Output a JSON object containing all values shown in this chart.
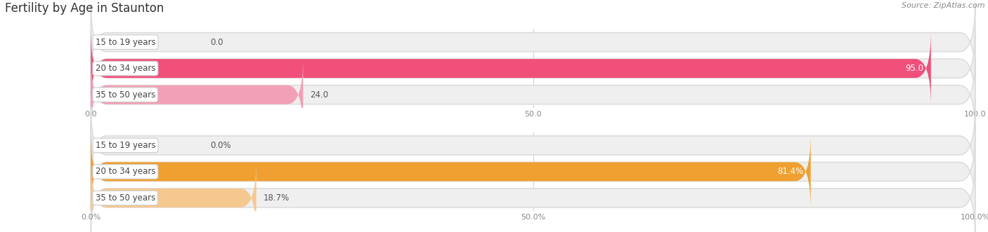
{
  "title": "Fertility by Age in Staunton",
  "source": "Source: ZipAtlas.com",
  "top_chart": {
    "categories": [
      "15 to 19 years",
      "20 to 34 years",
      "35 to 50 years"
    ],
    "values": [
      0.0,
      95.0,
      24.0
    ],
    "value_labels": [
      "0.0",
      "95.0",
      "24.0"
    ],
    "xlim": [
      0,
      100
    ],
    "xticks": [
      0.0,
      50.0,
      100.0
    ],
    "xtick_labels": [
      "0.0",
      "50.0",
      "100.0"
    ],
    "bar_colors": [
      "#f2a0b5",
      "#f0507a",
      "#f2a0b5"
    ],
    "bar_bg_color": "#efefef"
  },
  "bottom_chart": {
    "categories": [
      "15 to 19 years",
      "20 to 34 years",
      "35 to 50 years"
    ],
    "values": [
      0.0,
      81.4,
      18.7
    ],
    "value_labels": [
      "0.0%",
      "81.4%",
      "18.7%"
    ],
    "xlim": [
      0,
      100
    ],
    "xticks": [
      0.0,
      50.0,
      100.0
    ],
    "xtick_labels": [
      "0.0%",
      "50.0%",
      "100.0%"
    ],
    "bar_colors": [
      "#f5c890",
      "#f0a030",
      "#f5c890"
    ],
    "bar_bg_color": "#efefef"
  },
  "label_text_color": "#444444",
  "background_color": "#ffffff",
  "fig_width": 14.06,
  "fig_height": 3.31,
  "title_fontsize": 12,
  "label_fontsize": 8.5,
  "value_fontsize": 8.5,
  "axis_fontsize": 8
}
